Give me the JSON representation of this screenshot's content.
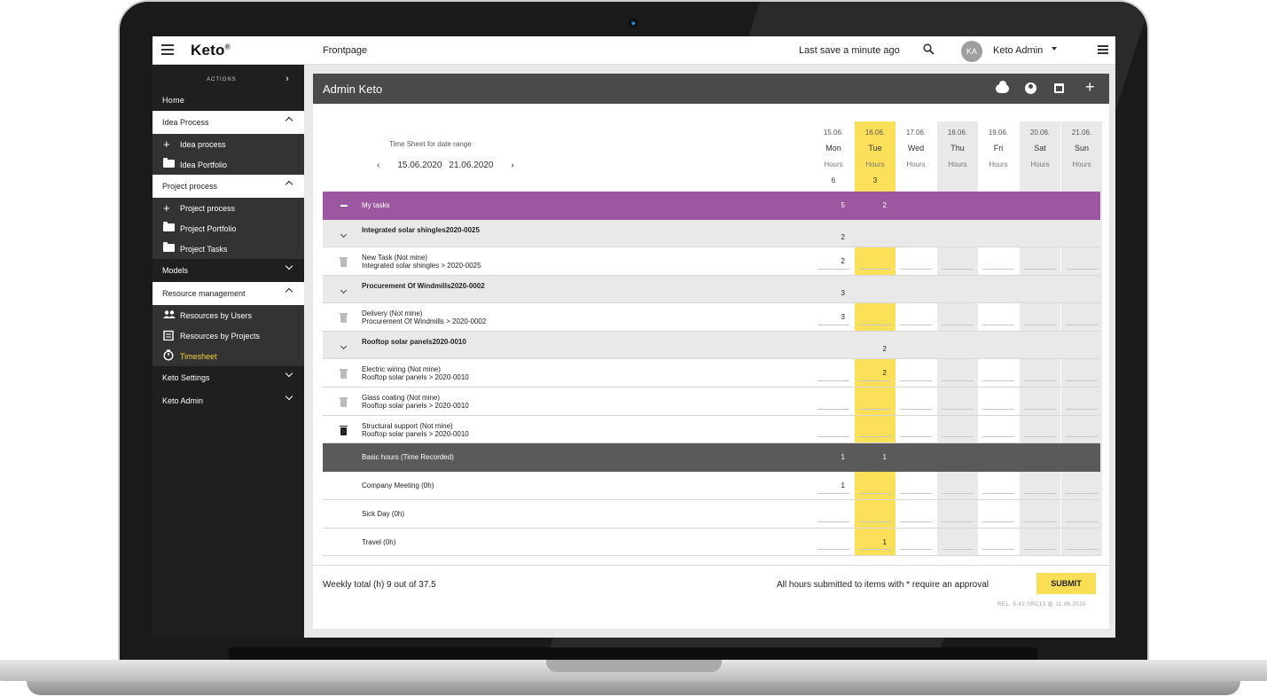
{
  "app": {
    "logo": "Keto",
    "logo_mark": "®",
    "breadcrumb": "Frontpage",
    "last_save": "Last save a minute ago",
    "user_initials": "KA",
    "user_name": "Keto Admin"
  },
  "sidebar": {
    "actions_label": "ACTIONS",
    "home": "Home",
    "idea_process": "Idea Process",
    "idea_items": [
      "Idea process",
      "Idea Portfolio"
    ],
    "project_process": "Project process",
    "project_items": [
      "Project process",
      "Project Portfolio",
      "Project Tasks"
    ],
    "models": "Models",
    "resource_management": "Resource management",
    "resource_items": [
      "Resources by Users",
      "Resources by Projects",
      "Timesheet"
    ],
    "keto_settings": "Keto Settings",
    "keto_admin": "Keto Admin"
  },
  "card": {
    "title": "Admin Keto"
  },
  "date_range": {
    "label": "Time Sheet for date range",
    "start": "15.06.2020",
    "end": "21.06.2020"
  },
  "days": [
    {
      "date": "15.06.",
      "name": "Mon",
      "unit": "Hours",
      "total": "6"
    },
    {
      "date": "16.06.",
      "name": "Tue",
      "unit": "Hours",
      "total": "3"
    },
    {
      "date": "17.06.",
      "name": "Wed",
      "unit": "Hours",
      "total": ""
    },
    {
      "date": "18.06.",
      "name": "Thu",
      "unit": "Hours",
      "total": ""
    },
    {
      "date": "19.06.",
      "name": "Fri",
      "unit": "Hours",
      "total": ""
    },
    {
      "date": "20.06.",
      "name": "Sat",
      "unit": "Hours",
      "total": ""
    },
    {
      "date": "21.06.",
      "name": "Sun",
      "unit": "Hours",
      "total": ""
    }
  ],
  "rows": [
    {
      "kind": "group",
      "label": "My tasks",
      "values": [
        "5",
        "2",
        "",
        "",
        "",
        "",
        ""
      ]
    },
    {
      "kind": "project",
      "label": "Integrated solar shingles2020-0025",
      "values": [
        "2",
        "",
        "",
        "",
        "",
        "",
        ""
      ]
    },
    {
      "kind": "task",
      "label": "New Task (Not mine)",
      "sub": "Integrated solar shingles > 2020-0025",
      "values": [
        "2",
        "",
        "",
        "",
        "",
        "",
        ""
      ],
      "trash": "grey"
    },
    {
      "kind": "project",
      "label": "Procurement Of Windmills2020-0002",
      "values": [
        "3",
        "",
        "",
        "",
        "",
        "",
        ""
      ]
    },
    {
      "kind": "task",
      "label": "Delivery (Not mine)",
      "sub": "Procurement Of Windmills > 2020-0002",
      "values": [
        "3",
        "",
        "",
        "",
        "",
        "",
        ""
      ],
      "trash": "grey"
    },
    {
      "kind": "project",
      "label": "Rooftop solar panels2020-0010",
      "values": [
        "",
        "2",
        "",
        "",
        "",
        "",
        ""
      ]
    },
    {
      "kind": "task",
      "label": "Electric wiring (Not mine)",
      "sub": "Rooftop solar panels > 2020-0010",
      "values": [
        "",
        "2",
        "",
        "",
        "",
        "",
        ""
      ],
      "trash": "grey"
    },
    {
      "kind": "task",
      "label": "Glass coating (Not mine)",
      "sub": "Rooftop solar panels > 2020-0010",
      "values": [
        "",
        "",
        "",
        "",
        "",
        "",
        ""
      ],
      "trash": "grey"
    },
    {
      "kind": "task",
      "label": "Structural support (Not mine)",
      "sub": "Rooftop solar panels > 2020-0010",
      "values": [
        "",
        "",
        "",
        "",
        "",
        "",
        ""
      ],
      "trash": "black"
    },
    {
      "kind": "basic",
      "label": "Basic hours (Time Recorded)",
      "values": [
        "1",
        "1",
        "",
        "",
        "",
        "",
        ""
      ]
    },
    {
      "kind": "plain",
      "label": "Company Meeting (0h)",
      "values": [
        "1",
        "",
        "",
        "",
        "",
        "",
        ""
      ]
    },
    {
      "kind": "plain",
      "label": "Sick Day (0h)",
      "values": [
        "",
        "",
        "",
        "",
        "",
        "",
        ""
      ]
    },
    {
      "kind": "plain",
      "label": "Travel (0h)",
      "values": [
        "",
        "1",
        "",
        "",
        "",
        "",
        ""
      ]
    }
  ],
  "footer": {
    "weekly_total": "Weekly total (h) 9  out of 37.5",
    "note": "All hours submitted to items with * require an approval",
    "submit": "SUBMIT",
    "release": "REL. 5.42.0RC13 @ 11.06.2020"
  },
  "colors": {
    "purple": "#9b58a0",
    "highlight": "#fde05a",
    "weekend": "#e9e9e9",
    "sidebar": "#1f1f1f",
    "active": "#f5d03a"
  }
}
